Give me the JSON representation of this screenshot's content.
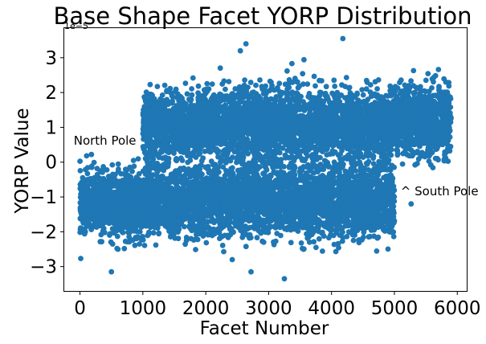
{
  "chart_data": {
    "type": "scatter",
    "title": "Base Shape Facet YORP Distribution",
    "xlabel": "Facet Number",
    "ylabel": "YORP Value",
    "y_scale_label": "1e−5",
    "xlim": [
      -250,
      6150
    ],
    "ylim": [
      -3.7,
      3.85
    ],
    "x_ticks": [
      0,
      1000,
      2000,
      3000,
      4000,
      5000,
      6000
    ],
    "x_tick_labels": [
      "0",
      "1000",
      "2000",
      "3000",
      "4000",
      "5000",
      "6000"
    ],
    "y_ticks": [
      -3,
      -2,
      -1,
      0,
      1,
      2,
      3
    ],
    "y_tick_labels": [
      "−3",
      "−2",
      "−1",
      "0",
      "1",
      "2",
      "3"
    ],
    "grid": false,
    "marker_color": "#1f77b4",
    "series_summary": [
      {
        "x_range": [
          0,
          1000
        ],
        "center": -1.2,
        "spread": 0.45,
        "note": "one dense cluster"
      },
      {
        "x_range": [
          1000,
          5000
        ],
        "center": 1.05,
        "spread": 0.5,
        "note": "upper cluster"
      },
      {
        "x_range": [
          1000,
          5000
        ],
        "center": -1.1,
        "spread": 0.5,
        "note": "lower cluster"
      },
      {
        "x_range": [
          5000,
          5900
        ],
        "center": 1.2,
        "spread": 0.5,
        "note": "one dense cluster"
      }
    ],
    "notable_points": [
      {
        "x": 4180,
        "y": 3.55
      },
      {
        "x": 2640,
        "y": 3.4
      },
      {
        "x": 2550,
        "y": 3.2
      },
      {
        "x": 3250,
        "y": -3.35
      },
      {
        "x": 2720,
        "y": -3.15
      },
      {
        "x": 500,
        "y": -3.15
      }
    ],
    "annotations": [
      {
        "text": "North Pole",
        "x": -100,
        "y": 0.5
      },
      {
        "text": "^ South Pole",
        "x": 5100,
        "y": -0.95
      }
    ]
  }
}
